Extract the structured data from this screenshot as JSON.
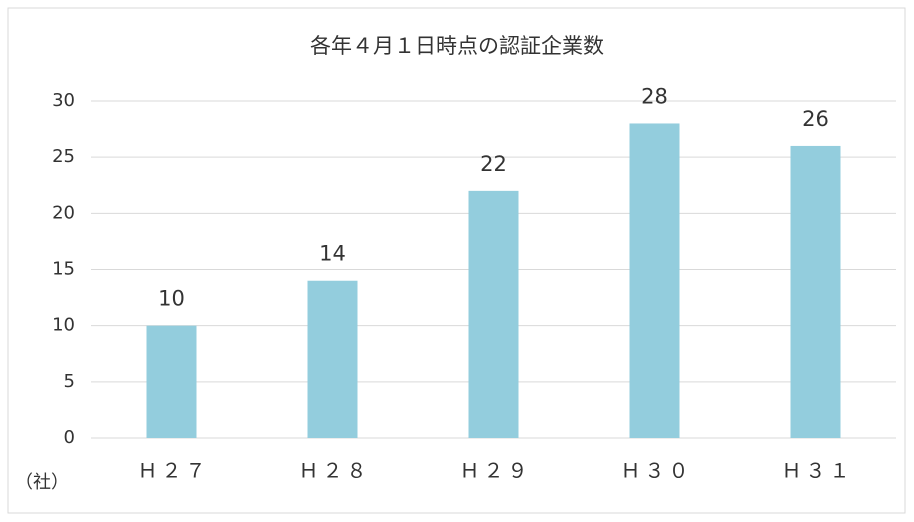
{
  "chart_data": {
    "type": "bar",
    "title": "各年４月１日時点の認証企業数",
    "y_label": "（社）",
    "categories": [
      "Ｈ２７",
      "Ｈ２８",
      "Ｈ２９",
      "Ｈ３０",
      "Ｈ３１"
    ],
    "values": [
      10,
      14,
      22,
      28,
      26
    ],
    "color": "#93cddd",
    "ylim": [
      0,
      30
    ],
    "yticks": [
      0,
      5,
      10,
      15,
      20,
      25,
      30
    ],
    "grid": true,
    "data_labels": true
  }
}
